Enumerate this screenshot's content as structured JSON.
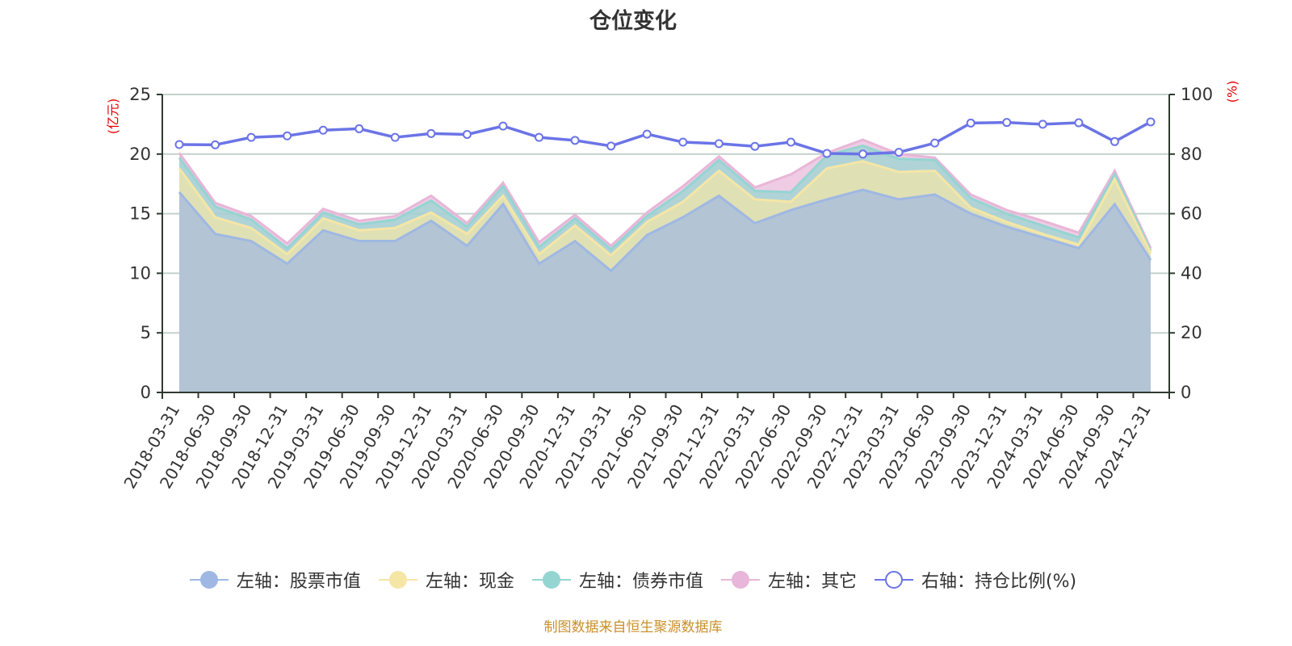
{
  "title": "仓位变化",
  "left_axis_name": "(亿元)",
  "right_axis_name": "(%)",
  "footer": "制图数据来自恒生聚源数据库",
  "legend": [
    {
      "label": "左轴：股票市值",
      "color": "#9fb8e3",
      "hollow": false
    },
    {
      "label": "左轴：现金",
      "color": "#f5e6a6",
      "hollow": false
    },
    {
      "label": "左轴：债券市值",
      "color": "#94d5d2",
      "hollow": false
    },
    {
      "label": "左轴：其它",
      "color": "#e8b6d8",
      "hollow": false
    },
    {
      "label": "右轴：持仓比例(%)",
      "color": "#6b74e6",
      "hollow": true
    }
  ],
  "chart_data": {
    "type": "area",
    "stacked": true,
    "title": "仓位变化",
    "xlabel": "",
    "ylabel": "(亿元)",
    "y2label": "(%)",
    "ylim": [
      0,
      25
    ],
    "y2lim": [
      0,
      100
    ],
    "yticks": [
      0,
      5,
      10,
      15,
      20,
      25
    ],
    "y2ticks": [
      0,
      20,
      40,
      60,
      80,
      100
    ],
    "grid": true,
    "legend_position": "bottom",
    "categories": [
      "2018-03-31",
      "2018-06-30",
      "2018-09-30",
      "2018-12-31",
      "2019-03-31",
      "2019-06-30",
      "2019-09-30",
      "2019-12-31",
      "2020-03-31",
      "2020-06-30",
      "2020-09-30",
      "2020-12-31",
      "2021-03-31",
      "2021-06-30",
      "2021-09-30",
      "2021-12-31",
      "2022-03-31",
      "2022-06-30",
      "2022-09-30",
      "2022-12-31",
      "2023-03-31",
      "2023-06-30",
      "2023-09-30",
      "2023-12-31",
      "2024-03-31",
      "2024-06-30",
      "2024-09-30",
      "2024-12-31"
    ],
    "series": [
      {
        "name": "左轴：股票市值",
        "axis": "left",
        "type": "area",
        "color": "#9fb8e3",
        "values": [
          16.8,
          13.3,
          12.7,
          10.8,
          13.6,
          12.7,
          12.7,
          14.4,
          12.3,
          15.8,
          10.8,
          12.7,
          10.2,
          13.2,
          14.7,
          16.5,
          14.2,
          15.3,
          16.2,
          17.0,
          16.2,
          16.6,
          15.0,
          13.9,
          13.0,
          12.1,
          15.8,
          11.1
        ]
      },
      {
        "name": "左轴：现金",
        "axis": "left",
        "type": "area",
        "color": "#f5e6a6",
        "values": [
          2.0,
          1.4,
          1.1,
          0.8,
          1.0,
          0.9,
          1.1,
          0.7,
          1.0,
          0.7,
          0.8,
          1.3,
          1.3,
          1.1,
          1.3,
          2.1,
          2.0,
          0.7,
          2.6,
          2.4,
          2.3,
          2.0,
          0.5,
          0.4,
          0.3,
          0.3,
          2.1,
          0.6
        ]
      },
      {
        "name": "左轴：债券市值",
        "axis": "left",
        "type": "area",
        "color": "#94d5d2",
        "values": [
          0.9,
          0.9,
          0.7,
          0.5,
          0.5,
          0.5,
          0.7,
          1.0,
          0.6,
          0.8,
          0.6,
          0.6,
          0.5,
          0.5,
          0.9,
          0.9,
          0.7,
          0.8,
          1.1,
          1.3,
          1.1,
          0.9,
          0.8,
          0.7,
          0.7,
          0.6,
          0.4,
          0.2
        ]
      },
      {
        "name": "左轴：其它",
        "axis": "left",
        "type": "area",
        "color": "#e8b6d8",
        "values": [
          0.4,
          0.3,
          0.3,
          0.4,
          0.3,
          0.3,
          0.3,
          0.4,
          0.3,
          0.3,
          0.4,
          0.3,
          0.3,
          0.3,
          0.4,
          0.3,
          0.3,
          1.5,
          0.2,
          0.5,
          0.4,
          0.2,
          0.3,
          0.3,
          0.4,
          0.4,
          0.3,
          0.2
        ]
      },
      {
        "name": "右轴：持仓比例(%)",
        "axis": "right",
        "type": "line",
        "color": "#6b74e6",
        "values": [
          83.2,
          83.1,
          85.6,
          86.1,
          88.0,
          88.5,
          85.6,
          86.9,
          86.6,
          89.4,
          85.6,
          84.6,
          82.7,
          86.7,
          84.0,
          83.5,
          82.6,
          84.0,
          80.2,
          80.0,
          80.6,
          83.7,
          90.4,
          90.6,
          90.0,
          90.5,
          84.2,
          90.8
        ]
      }
    ]
  }
}
